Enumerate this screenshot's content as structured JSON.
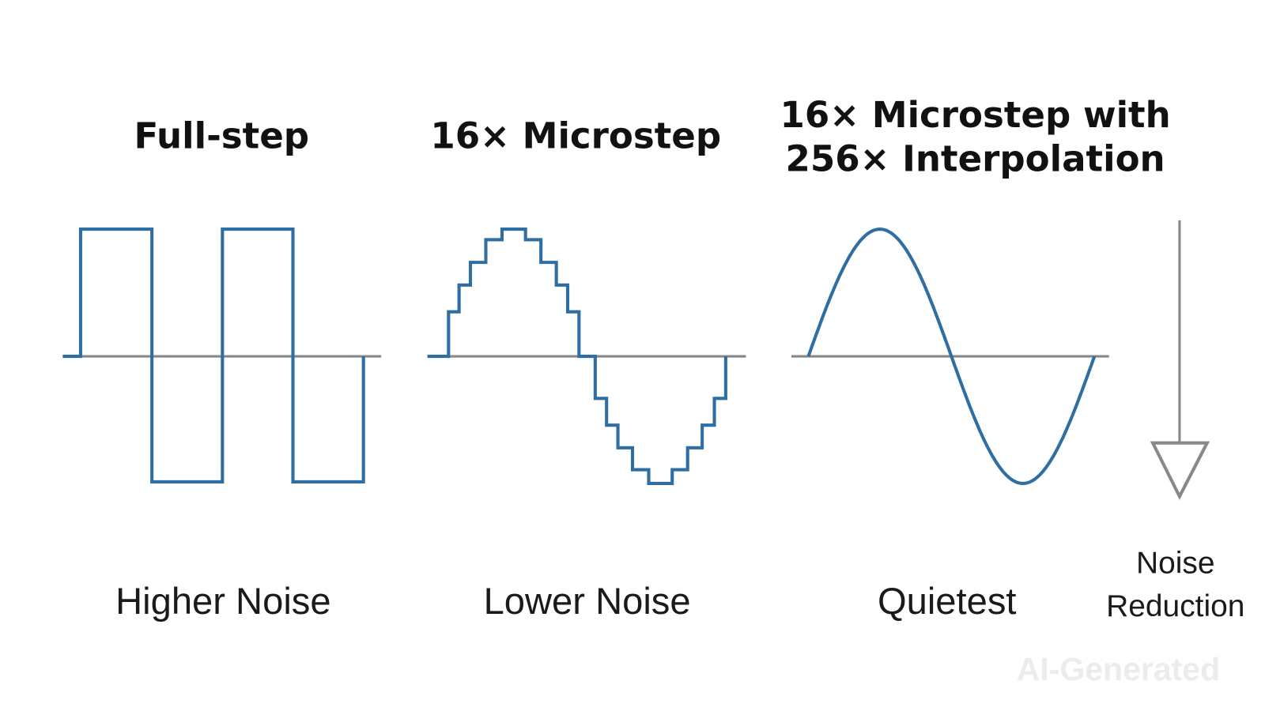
{
  "panels": [
    {
      "title": [
        "Full-step"
      ],
      "label": "Higher Noise"
    },
    {
      "title": [
        "16× Microstep"
      ],
      "label": "Lower Noise"
    },
    {
      "title": [
        "16× Microstep with",
        "256× Interpolation"
      ],
      "label": "Quietest"
    }
  ],
  "indicator": {
    "label": [
      "Noise",
      "Reduction"
    ]
  },
  "watermark": "AI-Generated"
}
